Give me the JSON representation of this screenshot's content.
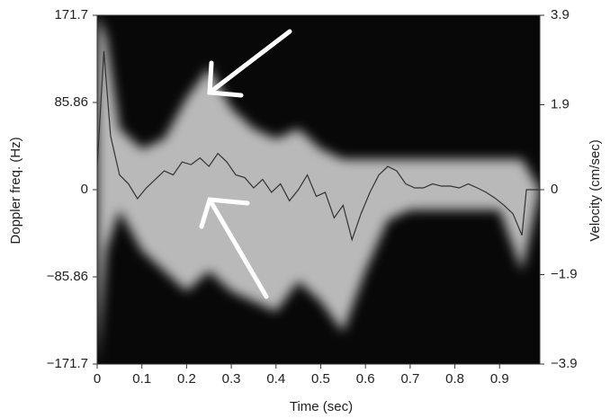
{
  "chart_data": {
    "type": "spectrogram",
    "xlabel": "Time (sec)",
    "ylabel": "Doppler freq. (Hz)",
    "y2label": "Velocity (cm/sec)",
    "xlim": [
      0,
      0.99
    ],
    "xticks": [
      0,
      0.1,
      0.2,
      0.3,
      0.4,
      0.5,
      0.6,
      0.7,
      0.8,
      0.9
    ],
    "ylim": [
      -171.7,
      171.7
    ],
    "yticks": [
      {
        "value": -171.7,
        "label": "−171.7"
      },
      {
        "value": -85.86,
        "label": "−85.86"
      },
      0,
      85.86,
      171.7
    ],
    "y2lim": [
      -3.9,
      3.9
    ],
    "y2ticks": [
      {
        "value": -3.9,
        "label": "−3.9"
      },
      {
        "value": -1.9,
        "label": "−1.9"
      },
      0,
      1.9,
      3.9
    ],
    "spectrum": {
      "color": "#d8d8d8",
      "x": [
        0,
        0.02,
        0.05,
        0.1,
        0.15,
        0.2,
        0.25,
        0.3,
        0.35,
        0.4,
        0.45,
        0.5,
        0.55,
        0.6,
        0.65,
        0.7,
        0.75,
        0.8,
        0.85,
        0.9,
        0.95,
        0.99
      ],
      "upper": [
        171.7,
        150,
        60,
        40,
        50,
        90,
        120,
        80,
        60,
        50,
        60,
        40,
        30,
        30,
        30,
        30,
        30,
        30,
        30,
        30,
        30,
        0
      ],
      "lower": [
        -171.7,
        -60,
        -20,
        -60,
        -80,
        -100,
        -80,
        -100,
        -110,
        -120,
        -90,
        -110,
        -140,
        -80,
        -30,
        -20,
        -20,
        -20,
        -20,
        -20,
        -80,
        0
      ]
    },
    "series": [
      {
        "axis": "y2",
        "color": "#333333",
        "x": [
          0,
          0.015,
          0.03,
          0.05,
          0.07,
          0.09,
          0.11,
          0.13,
          0.15,
          0.17,
          0.19,
          0.21,
          0.23,
          0.25,
          0.27,
          0.29,
          0.31,
          0.33,
          0.35,
          0.37,
          0.39,
          0.41,
          0.43,
          0.45,
          0.47,
          0.49,
          0.51,
          0.53,
          0.55,
          0.57,
          0.59,
          0.61,
          0.63,
          0.65,
          0.67,
          0.69,
          0.71,
          0.73,
          0.75,
          0.77,
          0.79,
          0.81,
          0.83,
          0.85,
          0.87,
          0.89,
          0.91,
          0.93,
          0.95,
          0.96,
          0.99
        ],
        "values": [
          0.52,
          3.1,
          1.2,
          0.33,
          0.13,
          -0.2,
          0.04,
          0.23,
          0.42,
          0.33,
          0.62,
          0.56,
          0.71,
          0.52,
          0.81,
          0.62,
          0.33,
          0.27,
          0.04,
          0.23,
          -0.06,
          0.13,
          -0.25,
          0,
          0.33,
          -0.15,
          -0.06,
          -0.63,
          -0.35,
          -1.12,
          -0.54,
          -0.06,
          0.33,
          0.52,
          0.42,
          0.13,
          0.04,
          0.04,
          0.13,
          0.08,
          0.08,
          0.04,
          0.13,
          0.04,
          -0.06,
          -0.19,
          -0.35,
          -0.54,
          -1.02,
          0,
          0
        ]
      }
    ]
  }
}
